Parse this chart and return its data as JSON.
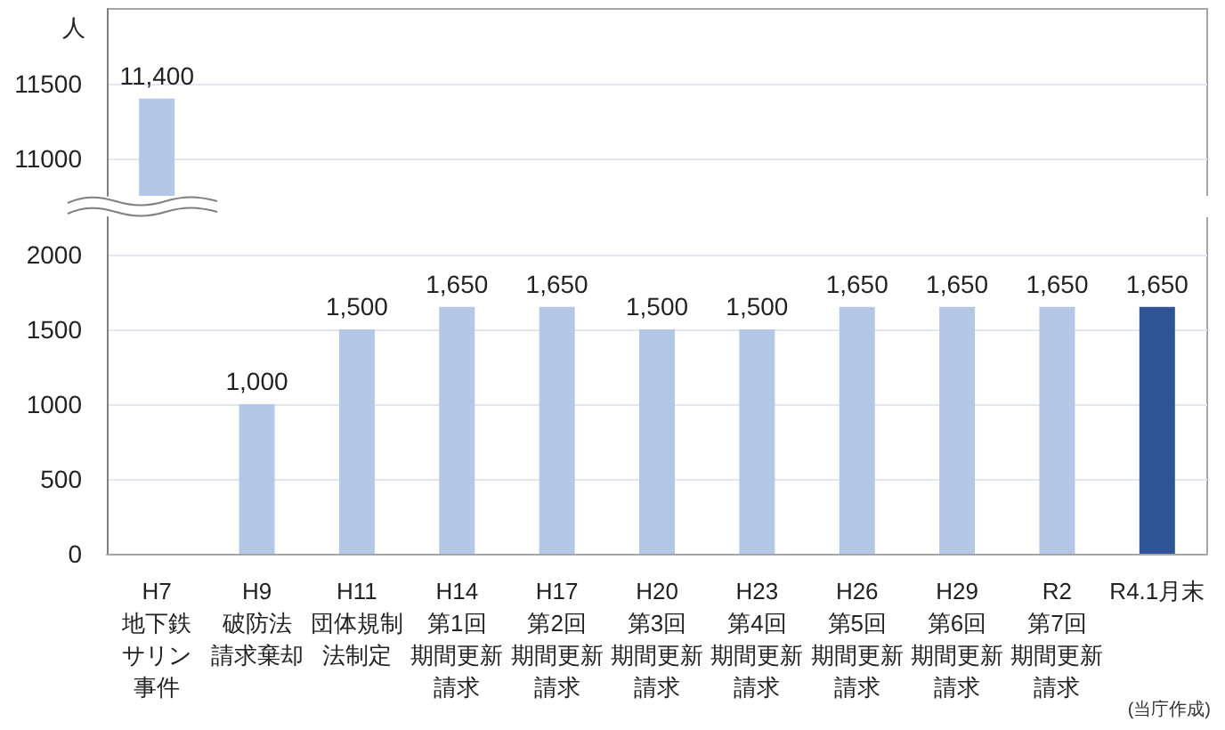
{
  "chart_data": [
    {
      "type": "bar",
      "ylabel": "人",
      "categories": [
        null,
        null,
        null,
        null,
        null,
        null,
        null,
        null,
        null,
        null,
        null
      ],
      "values": [
        11400,
        null,
        null,
        null,
        null,
        null,
        null,
        null,
        null,
        null,
        null
      ],
      "color": "#b4c7e7",
      "value_labels": [
        "11,400",
        null,
        null,
        null,
        null,
        null,
        null,
        null,
        null,
        null,
        null
      ],
      "ylim": [
        10750,
        12000
      ],
      "yticks": [
        11000,
        11500
      ],
      "grid": "y",
      "tick_labels": "y"
    },
    {
      "type": "bar",
      "categories": [
        "H7\n地下鉄サリン事件",
        "H9\n破防法請求棄却",
        "H11\n団体規制法制定",
        "H14\n第1回期間更新請求",
        "H17\n第2回期間更新請求",
        "H20\n第3回期間更新請求",
        "H23\n第4回期間更新請求",
        "H26\n第5回期間更新請求",
        "H29\n第6回期間更新請求",
        "R2\n第7回期間更新請求",
        "R4.1月末"
      ],
      "values": [
        null,
        1000,
        1500,
        1650,
        1650,
        1500,
        1500,
        1650,
        1650,
        1650,
        1650
      ],
      "colors": [
        null,
        "#b4c7e7",
        "#b4c7e7",
        "#b4c7e7",
        "#b4c7e7",
        "#b4c7e7",
        "#b4c7e7",
        "#b4c7e7",
        "#b4c7e7",
        "#b4c7e7",
        "#2f5597"
      ],
      "value_labels": [
        null,
        "1,000",
        "1,500",
        "1,650",
        "1,650",
        "1,500",
        "1,500",
        "1,650",
        "1,650",
        "1,650",
        "1,650"
      ],
      "ylim": [
        0,
        2250
      ],
      "yticks": [
        0,
        500,
        1000,
        1500,
        2000
      ],
      "grid": "y",
      "annotations": [
        "(当庁作成)"
      ]
    }
  ]
}
